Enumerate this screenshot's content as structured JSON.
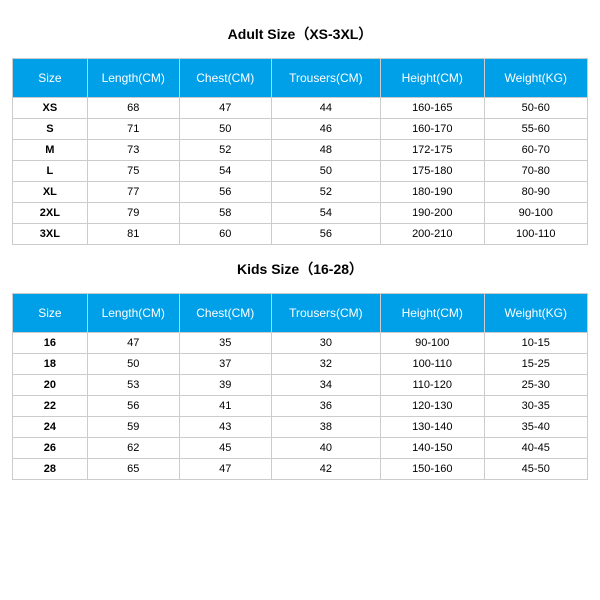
{
  "adult": {
    "title": "Adult Size（XS-3XL）",
    "columns": [
      "Size",
      "Length(CM)",
      "Chest(CM)",
      "Trousers(CM)",
      "Height(CM)",
      "Weight(KG)"
    ],
    "rows": [
      [
        "XS",
        "68",
        "47",
        "44",
        "160-165",
        "50-60"
      ],
      [
        "S",
        "71",
        "50",
        "46",
        "160-170",
        "55-60"
      ],
      [
        "M",
        "73",
        "52",
        "48",
        "172-175",
        "60-70"
      ],
      [
        "L",
        "75",
        "54",
        "50",
        "175-180",
        "70-80"
      ],
      [
        "XL",
        "77",
        "56",
        "52",
        "180-190",
        "80-90"
      ],
      [
        "2XL",
        "79",
        "58",
        "54",
        "190-200",
        "90-100"
      ],
      [
        "3XL",
        "81",
        "60",
        "56",
        "200-210",
        "100-110"
      ]
    ]
  },
  "kids": {
    "title": "Kids Size（16-28）",
    "columns": [
      "Size",
      "Length(CM)",
      "Chest(CM)",
      "Trousers(CM)",
      "Height(CM)",
      "Weight(KG)"
    ],
    "rows": [
      [
        "16",
        "47",
        "35",
        "30",
        "90-100",
        "10-15"
      ],
      [
        "18",
        "50",
        "37",
        "32",
        "100-110",
        "15-25"
      ],
      [
        "20",
        "53",
        "39",
        "34",
        "110-120",
        "25-30"
      ],
      [
        "22",
        "56",
        "41",
        "36",
        "120-130",
        "30-35"
      ],
      [
        "24",
        "59",
        "43",
        "38",
        "130-140",
        "35-40"
      ],
      [
        "26",
        "62",
        "45",
        "40",
        "140-150",
        "40-45"
      ],
      [
        "28",
        "65",
        "47",
        "42",
        "150-160",
        "45-50"
      ]
    ]
  },
  "style": {
    "header_bg": "#00a0e9",
    "header_color": "#ffffff",
    "border_color": "#cccccc",
    "title_fontsize": 14,
    "header_fontsize": 12,
    "cell_fontsize": 11
  }
}
